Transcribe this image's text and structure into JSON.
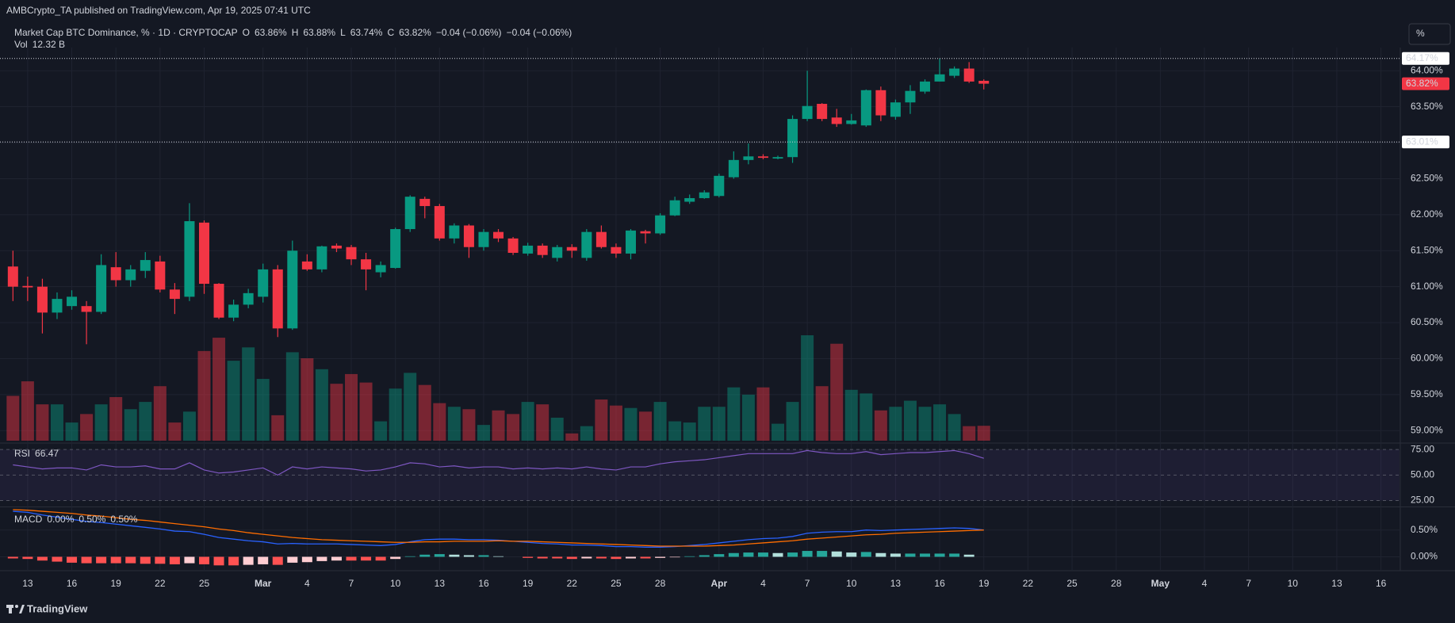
{
  "header": {
    "published": "AMBCrypto_TA published on TradingView.com, Apr 19, 2025 07:41 UTC",
    "symbol": "Market Cap BTC Dominance, % · 1D · CRYPTOCAP",
    "ohlc": [
      {
        "key": "O",
        "value": "63.86%"
      },
      {
        "key": "H",
        "value": "63.88%"
      },
      {
        "key": "L",
        "value": "63.74%"
      },
      {
        "key": "C",
        "value": "63.82%"
      }
    ],
    "change": [
      "−0.04 (−0.06%)",
      "−0.04 (−0.06%)"
    ],
    "scale_button": "%"
  },
  "chart_data": [
    {
      "type": "candlestick",
      "open": [
        61.28,
        61.01,
        61.0,
        60.64,
        60.73,
        60.73,
        60.65,
        61.27,
        61.09,
        61.22,
        61.35,
        60.96,
        60.86,
        61.89,
        61.04,
        60.57,
        60.75,
        60.86,
        61.24,
        60.42,
        61.35,
        61.24,
        61.57,
        61.55,
        61.38,
        61.2,
        61.26,
        61.8,
        62.22,
        62.12,
        61.67,
        61.85,
        61.55,
        61.76,
        61.67,
        61.46,
        61.57,
        61.4,
        61.55,
        61.4,
        61.76,
        61.55,
        61.46,
        61.77,
        61.74,
        61.99,
        62.18,
        62.23,
        62.26,
        62.52,
        62.76,
        62.81,
        62.78,
        62.8,
        63.33,
        63.54,
        63.35,
        63.26,
        63.24,
        63.73,
        63.36,
        63.56,
        63.71,
        63.85,
        63.93,
        64.03,
        63.86
      ],
      "high": [
        61.5,
        61.14,
        61.11,
        60.92,
        60.95,
        60.8,
        61.45,
        61.48,
        61.3,
        61.48,
        61.43,
        61.05,
        62.16,
        61.92,
        61.05,
        60.82,
        60.97,
        61.32,
        61.3,
        61.64,
        61.45,
        61.57,
        61.6,
        61.58,
        61.47,
        61.35,
        61.82,
        62.27,
        62.25,
        62.15,
        61.88,
        61.87,
        61.8,
        61.8,
        61.69,
        61.61,
        61.6,
        61.58,
        61.59,
        61.8,
        61.85,
        61.6,
        61.8,
        61.79,
        62.02,
        62.25,
        62.28,
        62.34,
        62.57,
        62.88,
        62.99,
        62.84,
        62.82,
        63.38,
        64.0,
        63.55,
        63.47,
        63.4,
        63.74,
        63.78,
        63.6,
        63.8,
        63.88,
        64.17,
        64.06,
        64.12,
        63.88
      ],
      "low": [
        60.8,
        60.8,
        60.35,
        60.55,
        60.68,
        60.2,
        60.62,
        61.0,
        61.0,
        61.12,
        60.92,
        60.62,
        60.8,
        60.9,
        60.55,
        60.52,
        60.7,
        60.78,
        60.3,
        60.4,
        61.22,
        61.2,
        61.48,
        61.3,
        60.95,
        61.13,
        61.25,
        61.76,
        61.95,
        61.64,
        61.6,
        61.4,
        61.5,
        61.62,
        61.44,
        61.43,
        61.4,
        61.35,
        61.4,
        61.36,
        61.53,
        61.4,
        61.38,
        61.6,
        61.72,
        61.98,
        62.15,
        62.22,
        62.24,
        62.5,
        62.7,
        62.77,
        62.77,
        62.72,
        63.3,
        63.3,
        63.22,
        63.25,
        63.22,
        63.3,
        63.32,
        63.4,
        63.68,
        63.85,
        63.9,
        63.83,
        63.74
      ],
      "close": [
        61.0,
        60.99,
        60.64,
        60.83,
        60.86,
        60.65,
        61.3,
        61.09,
        61.24,
        61.37,
        60.96,
        60.83,
        61.91,
        61.04,
        60.57,
        60.75,
        60.91,
        61.24,
        60.42,
        61.5,
        61.24,
        61.56,
        61.53,
        61.38,
        61.24,
        61.3,
        61.8,
        62.25,
        62.12,
        61.67,
        61.85,
        61.55,
        61.76,
        61.67,
        61.47,
        61.57,
        61.44,
        61.55,
        61.5,
        61.76,
        61.55,
        61.46,
        61.78,
        61.74,
        61.99,
        62.2,
        62.23,
        62.31,
        62.54,
        62.76,
        62.81,
        62.79,
        62.8,
        63.33,
        63.51,
        63.33,
        63.26,
        63.31,
        63.73,
        63.38,
        63.56,
        63.72,
        63.85,
        63.95,
        64.03,
        63.85,
        63.82
      ],
      "up_color": "#089981",
      "down_color": "#f23645",
      "volume": {
        "name": "Vol",
        "current_label": "12.32 B",
        "values": [
          37,
          49,
          30,
          30,
          15,
          22,
          30,
          36,
          26,
          32,
          45,
          15,
          24,
          74,
          85,
          66,
          77,
          51,
          21,
          73,
          68,
          59,
          47,
          55,
          48,
          16,
          43,
          56,
          46,
          31,
          28,
          26,
          13,
          25,
          22,
          32,
          30,
          19,
          6,
          12,
          34,
          29,
          27,
          24,
          32,
          16,
          15,
          28,
          28,
          44,
          38,
          44,
          14,
          32,
          87,
          45,
          80,
          42,
          39,
          25,
          28,
          33,
          28,
          30,
          22,
          12,
          12.32
        ]
      },
      "xlim": [
        -0.88,
        94.26
      ],
      "xticks": [
        {
          "value": 1,
          "label": "13"
        },
        {
          "value": 4,
          "label": "16"
        },
        {
          "value": 7,
          "label": "19"
        },
        {
          "value": 10,
          "label": "22"
        },
        {
          "value": 13,
          "label": "25"
        },
        {
          "value": 17,
          "label": "Mar"
        },
        {
          "value": 20,
          "label": "4"
        },
        {
          "value": 23,
          "label": "7"
        },
        {
          "value": 26,
          "label": "10"
        },
        {
          "value": 29,
          "label": "13"
        },
        {
          "value": 32,
          "label": "16"
        },
        {
          "value": 35,
          "label": "19"
        },
        {
          "value": 38,
          "label": "22"
        },
        {
          "value": 41,
          "label": "25"
        },
        {
          "value": 44,
          "label": "28"
        },
        {
          "value": 48,
          "label": "Apr"
        },
        {
          "value": 51,
          "label": "4"
        },
        {
          "value": 54,
          "label": "7"
        },
        {
          "value": 57,
          "label": "10"
        },
        {
          "value": 60,
          "label": "13"
        },
        {
          "value": 63,
          "label": "16"
        },
        {
          "value": 66,
          "label": "19"
        },
        {
          "value": 69,
          "label": "22"
        },
        {
          "value": 72,
          "label": "25"
        },
        {
          "value": 75,
          "label": "28"
        },
        {
          "value": 78,
          "label": "May"
        },
        {
          "value": 81,
          "label": "4"
        },
        {
          "value": 84,
          "label": "7"
        },
        {
          "value": 87,
          "label": "10"
        },
        {
          "value": 90,
          "label": "13"
        },
        {
          "value": 93,
          "label": "16"
        }
      ],
      "ylim": [
        58.86,
        64.3
      ],
      "yticks": [
        {
          "value": 59,
          "label": "59.00%"
        },
        {
          "value": 59.5,
          "label": "59.50%"
        },
        {
          "value": 60,
          "label": "60.00%"
        },
        {
          "value": 60.5,
          "label": "60.50%"
        },
        {
          "value": 61,
          "label": "61.00%"
        },
        {
          "value": 61.5,
          "label": "61.50%"
        },
        {
          "value": 62,
          "label": "62.00%"
        },
        {
          "value": 62.5,
          "label": "62.50%"
        },
        {
          "value": 63,
          "label": "63.00%"
        },
        {
          "value": 63.5,
          "label": "63.50%"
        },
        {
          "value": 64,
          "label": "64.00%"
        }
      ],
      "levels": [
        {
          "value": 64.17,
          "label": "64.17%"
        },
        {
          "value": 63.01,
          "label": "63.01%"
        }
      ],
      "last_label": "63.82%",
      "grid": true
    },
    {
      "type": "line",
      "name": "RSI",
      "color": "#7e57c2",
      "values": [
        60,
        58,
        56,
        57,
        57,
        55,
        60,
        58,
        58,
        59,
        56,
        56,
        62,
        55,
        52,
        53,
        55,
        57,
        50,
        58,
        56,
        58,
        57,
        56,
        54,
        55,
        58,
        62,
        61,
        58,
        59,
        57,
        58,
        58,
        56,
        57,
        56,
        57,
        56,
        58,
        56,
        55,
        58,
        58,
        61,
        63,
        64,
        65,
        67,
        69,
        71,
        71,
        71,
        71,
        74,
        72,
        71,
        71,
        73,
        70,
        71,
        72,
        72,
        73,
        74,
        71,
        66.47
      ],
      "ylim": [
        20,
        79
      ],
      "yticks": [
        {
          "value": 75,
          "label": "75.00"
        },
        {
          "value": 50,
          "label": "50.00"
        },
        {
          "value": 25,
          "label": "25.00"
        }
      ]
    },
    {
      "type": "macd",
      "name": "MACD",
      "histogram": [
        -0.03,
        -0.04,
        -0.07,
        -0.09,
        -0.11,
        -0.12,
        -0.12,
        -0.12,
        -0.12,
        -0.13,
        -0.13,
        -0.14,
        -0.12,
        -0.14,
        -0.16,
        -0.16,
        -0.15,
        -0.14,
        -0.15,
        -0.11,
        -0.1,
        -0.08,
        -0.07,
        -0.07,
        -0.07,
        -0.07,
        -0.04,
        0.01,
        0.04,
        0.05,
        0.04,
        0.03,
        0.03,
        0.01,
        0.0,
        -0.02,
        -0.03,
        -0.03,
        -0.04,
        -0.03,
        -0.03,
        -0.04,
        -0.03,
        -0.03,
        -0.02,
        -0.01,
        0.01,
        0.03,
        0.05,
        0.07,
        0.08,
        0.08,
        0.07,
        0.08,
        0.11,
        0.11,
        0.1,
        0.08,
        0.09,
        0.07,
        0.06,
        0.06,
        0.06,
        0.06,
        0.06,
        0.04,
        0.0
      ],
      "macd": [
        0.85,
        0.83,
        0.78,
        0.74,
        0.7,
        0.66,
        0.64,
        0.61,
        0.58,
        0.55,
        0.52,
        0.48,
        0.47,
        0.42,
        0.36,
        0.33,
        0.3,
        0.28,
        0.24,
        0.25,
        0.24,
        0.24,
        0.24,
        0.23,
        0.22,
        0.21,
        0.23,
        0.28,
        0.32,
        0.33,
        0.33,
        0.32,
        0.32,
        0.31,
        0.29,
        0.27,
        0.25,
        0.24,
        0.22,
        0.22,
        0.21,
        0.19,
        0.19,
        0.18,
        0.18,
        0.19,
        0.21,
        0.23,
        0.26,
        0.29,
        0.32,
        0.34,
        0.35,
        0.38,
        0.44,
        0.46,
        0.47,
        0.47,
        0.5,
        0.49,
        0.5,
        0.51,
        0.52,
        0.53,
        0.54,
        0.53,
        0.5
      ],
      "signal": [
        0.88,
        0.87,
        0.85,
        0.83,
        0.81,
        0.78,
        0.76,
        0.73,
        0.7,
        0.68,
        0.65,
        0.62,
        0.59,
        0.56,
        0.52,
        0.49,
        0.45,
        0.42,
        0.39,
        0.36,
        0.34,
        0.32,
        0.31,
        0.3,
        0.29,
        0.28,
        0.27,
        0.27,
        0.28,
        0.28,
        0.29,
        0.29,
        0.29,
        0.3,
        0.29,
        0.29,
        0.28,
        0.27,
        0.26,
        0.25,
        0.24,
        0.23,
        0.22,
        0.21,
        0.2,
        0.2,
        0.2,
        0.2,
        0.21,
        0.22,
        0.24,
        0.26,
        0.28,
        0.3,
        0.33,
        0.35,
        0.37,
        0.39,
        0.41,
        0.42,
        0.44,
        0.45,
        0.46,
        0.47,
        0.48,
        0.49,
        0.5
      ],
      "histogram_label": "0.00%",
      "macd_label": "0.50%",
      "signal_label": "0.50%",
      "macd_color": "#2962ff",
      "signal_color": "#ff6d00",
      "ylim": [
        -0.2,
        0.91
      ],
      "yticks": [
        {
          "value": 0.5,
          "label": "0.50%"
        },
        {
          "value": 0,
          "label": "0.00%"
        }
      ]
    }
  ],
  "footer": {
    "brand": "TradingView"
  }
}
